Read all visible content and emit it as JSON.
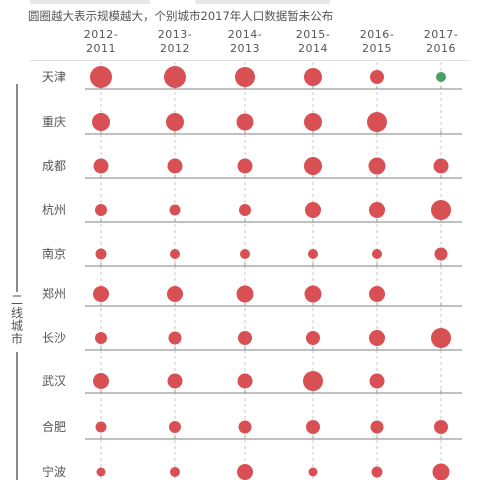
{
  "subtitle": "圆圈越大表示规模越大，个别城市2017年人口数据暂未公布",
  "group_label": "二线城市",
  "colors": {
    "bubble": "#d6474b",
    "missing": "#3f9a5a",
    "axis": "#9a9a9a",
    "dashed": "#c8c8c8"
  },
  "chart_data": {
    "type": "scatter",
    "title": "",
    "subtitle": "圆圈越大表示规模越大，个别城市2017年人口数据暂未公布",
    "x_categories": [
      "2012-2011",
      "2013-2012",
      "2014-2013",
      "2015-2014",
      "2016-2015",
      "2017-2016"
    ],
    "x_labels": [
      [
        "2012-",
        "2011"
      ],
      [
        "2013-",
        "2012"
      ],
      [
        "2014-",
        "2013"
      ],
      [
        "2015-",
        "2014"
      ],
      [
        "2016-",
        "2015"
      ],
      [
        "2017-",
        "2016"
      ]
    ],
    "rows": [
      {
        "city": "天津",
        "sizes": [
          11,
          11,
          10,
          9,
          7,
          5
        ],
        "missing": [
          false,
          false,
          false,
          false,
          false,
          true
        ]
      },
      {
        "city": "重庆",
        "sizes": [
          9,
          9,
          8.5,
          9,
          10,
          null
        ],
        "missing": [
          false,
          false,
          false,
          false,
          false,
          false
        ]
      },
      {
        "city": "成都",
        "sizes": [
          7.5,
          7.5,
          7.5,
          9,
          8.5,
          7.5
        ],
        "missing": [
          false,
          false,
          false,
          false,
          false,
          false
        ]
      },
      {
        "city": "杭州",
        "sizes": [
          6,
          5.5,
          6,
          8,
          8,
          10
        ],
        "missing": [
          false,
          false,
          false,
          false,
          false,
          false
        ]
      },
      {
        "city": "南京",
        "sizes": [
          5.5,
          5,
          5,
          5,
          5,
          6.5
        ],
        "missing": [
          false,
          false,
          false,
          false,
          false,
          false
        ]
      },
      {
        "city": "郑州",
        "sizes": [
          8,
          8,
          8.5,
          8.5,
          8,
          null
        ],
        "missing": [
          false,
          false,
          false,
          false,
          false,
          false
        ]
      },
      {
        "city": "长沙",
        "sizes": [
          6,
          6.5,
          7,
          7,
          8,
          10
        ],
        "missing": [
          false,
          false,
          false,
          false,
          false,
          false
        ]
      },
      {
        "city": "武汉",
        "sizes": [
          8,
          7.5,
          7.5,
          10,
          7.5,
          null
        ],
        "missing": [
          false,
          false,
          false,
          false,
          false,
          false
        ]
      },
      {
        "city": "合肥",
        "sizes": [
          5.5,
          6,
          6.5,
          7,
          6.5,
          7
        ],
        "missing": [
          false,
          false,
          false,
          false,
          false,
          false
        ]
      },
      {
        "city": "宁波",
        "sizes": [
          4.5,
          5,
          8,
          4.5,
          5.5,
          8.5
        ],
        "missing": [
          false,
          false,
          false,
          false,
          false,
          false
        ]
      }
    ],
    "grid": true
  }
}
